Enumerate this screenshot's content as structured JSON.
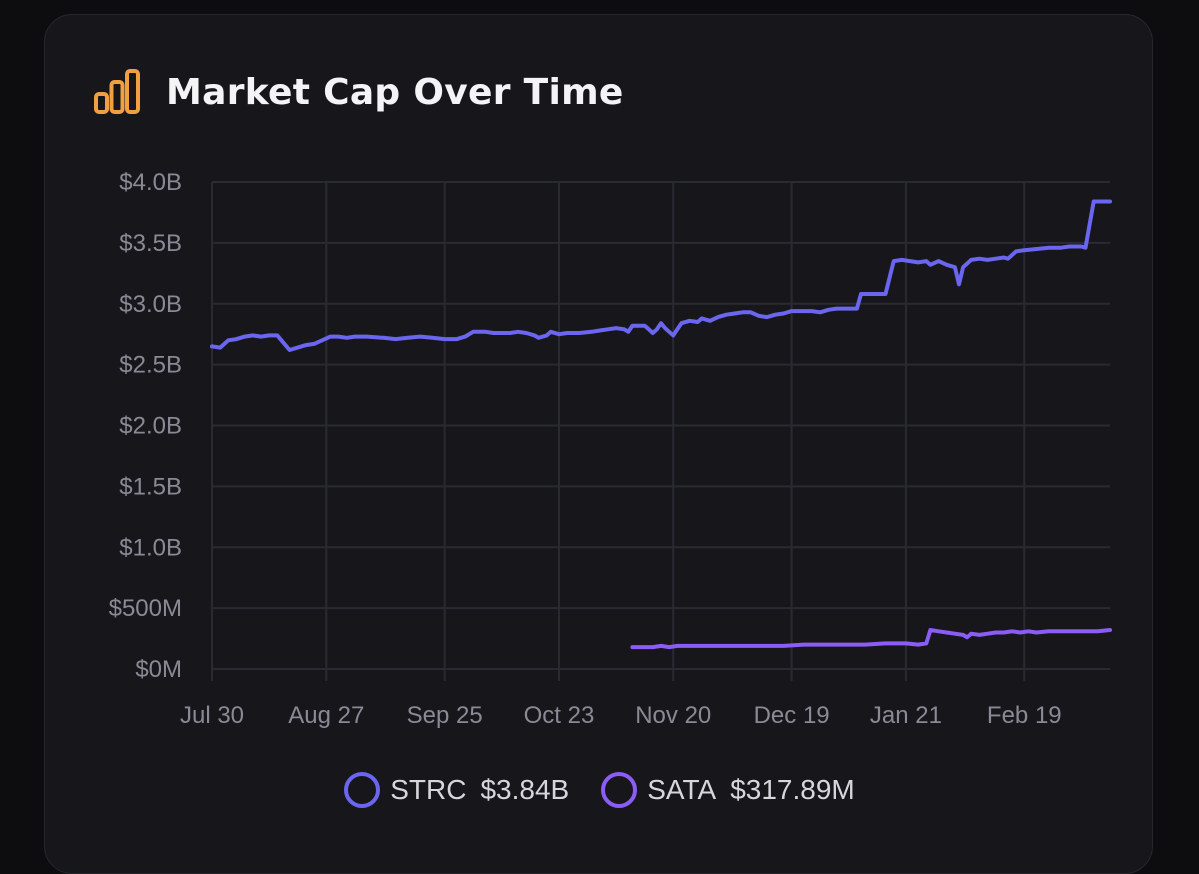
{
  "colors": {
    "accent_icon": "#f0a040",
    "strc": "#6b66f0",
    "sata": "#8b5cf6",
    "grid": "#2a2a33"
  },
  "header": {
    "icon": "bar-chart-icon",
    "title": "Market Cap Over Time"
  },
  "chart_data": {
    "type": "line",
    "title": "Market Cap Over Time",
    "xlabel": "",
    "ylabel": "",
    "ylim": [
      0,
      4000000000
    ],
    "yticks": [
      {
        "value": 0,
        "label": "$0M"
      },
      {
        "value": 500000000,
        "label": "$500M"
      },
      {
        "value": 1000000000,
        "label": "$1.0B"
      },
      {
        "value": 1500000000,
        "label": "$1.5B"
      },
      {
        "value": 2000000000,
        "label": "$2.0B"
      },
      {
        "value": 2500000000,
        "label": "$2.5B"
      },
      {
        "value": 3000000000,
        "label": "$3.0B"
      },
      {
        "value": 3500000000,
        "label": "$3.5B"
      },
      {
        "value": 4000000000,
        "label": "$4.0B"
      }
    ],
    "xlim": [
      0,
      220
    ],
    "xticks": [
      {
        "value": 0,
        "label": "Jul 30"
      },
      {
        "value": 28,
        "label": "Aug 27"
      },
      {
        "value": 57,
        "label": "Sep 25"
      },
      {
        "value": 85,
        "label": "Oct 23"
      },
      {
        "value": 113,
        "label": "Nov 20"
      },
      {
        "value": 142,
        "label": "Dec 19"
      },
      {
        "value": 170,
        "label": "Jan 21"
      },
      {
        "value": 199,
        "label": "Feb 19"
      }
    ],
    "grid": true,
    "x_unit": "days since Jul 30",
    "series": [
      {
        "name": "STRC",
        "value_label": "$3.84B",
        "color": "#6b66f0",
        "points": [
          [
            0,
            2.65
          ],
          [
            2,
            2.64
          ],
          [
            4,
            2.7
          ],
          [
            6,
            2.71
          ],
          [
            8,
            2.73
          ],
          [
            10,
            2.74
          ],
          [
            12,
            2.73
          ],
          [
            14,
            2.74
          ],
          [
            16,
            2.74
          ],
          [
            17,
            2.7
          ],
          [
            19,
            2.62
          ],
          [
            21,
            2.64
          ],
          [
            23,
            2.66
          ],
          [
            25,
            2.67
          ],
          [
            27,
            2.7
          ],
          [
            29,
            2.73
          ],
          [
            31,
            2.73
          ],
          [
            33,
            2.72
          ],
          [
            35,
            2.73
          ],
          [
            38,
            2.73
          ],
          [
            42,
            2.72
          ],
          [
            45,
            2.71
          ],
          [
            48,
            2.72
          ],
          [
            51,
            2.73
          ],
          [
            54,
            2.72
          ],
          [
            57,
            2.71
          ],
          [
            60,
            2.71
          ],
          [
            62,
            2.73
          ],
          [
            64,
            2.77
          ],
          [
            67,
            2.77
          ],
          [
            69,
            2.76
          ],
          [
            71,
            2.76
          ],
          [
            73,
            2.76
          ],
          [
            75,
            2.77
          ],
          [
            77,
            2.76
          ],
          [
            79,
            2.74
          ],
          [
            80,
            2.72
          ],
          [
            82,
            2.74
          ],
          [
            83,
            2.77
          ],
          [
            85,
            2.75
          ],
          [
            87,
            2.76
          ],
          [
            90,
            2.76
          ],
          [
            93,
            2.77
          ],
          [
            95,
            2.78
          ],
          [
            97,
            2.79
          ],
          [
            99,
            2.8
          ],
          [
            101,
            2.79
          ],
          [
            102,
            2.77
          ],
          [
            103,
            2.82
          ],
          [
            106,
            2.82
          ],
          [
            107,
            2.79
          ],
          [
            108,
            2.76
          ],
          [
            109,
            2.79
          ],
          [
            110,
            2.84
          ],
          [
            111,
            2.8
          ],
          [
            112,
            2.77
          ],
          [
            113,
            2.74
          ],
          [
            115,
            2.84
          ],
          [
            117,
            2.86
          ],
          [
            119,
            2.85
          ],
          [
            120,
            2.88
          ],
          [
            122,
            2.86
          ],
          [
            124,
            2.89
          ],
          [
            126,
            2.91
          ],
          [
            128,
            2.92
          ],
          [
            130,
            2.93
          ],
          [
            132,
            2.93
          ],
          [
            134,
            2.9
          ],
          [
            136,
            2.89
          ],
          [
            138,
            2.91
          ],
          [
            140,
            2.92
          ],
          [
            142,
            2.94
          ],
          [
            145,
            2.94
          ],
          [
            147,
            2.94
          ],
          [
            149,
            2.93
          ],
          [
            151,
            2.95
          ],
          [
            153,
            2.96
          ],
          [
            155,
            2.96
          ],
          [
            158,
            2.96
          ],
          [
            159,
            3.08
          ],
          [
            161,
            3.08
          ],
          [
            163,
            3.08
          ],
          [
            165,
            3.08
          ],
          [
            167,
            3.35
          ],
          [
            169,
            3.36
          ],
          [
            171,
            3.35
          ],
          [
            173,
            3.34
          ],
          [
            175,
            3.35
          ],
          [
            176,
            3.32
          ],
          [
            178,
            3.35
          ],
          [
            180,
            3.32
          ],
          [
            182,
            3.3
          ],
          [
            183,
            3.16
          ],
          [
            184,
            3.3
          ],
          [
            186,
            3.36
          ],
          [
            188,
            3.37
          ],
          [
            190,
            3.36
          ],
          [
            192,
            3.37
          ],
          [
            194,
            3.38
          ],
          [
            195,
            3.37
          ],
          [
            197,
            3.43
          ],
          [
            199,
            3.44
          ],
          [
            202,
            3.45
          ],
          [
            205,
            3.46
          ],
          [
            208,
            3.46
          ],
          [
            210,
            3.47
          ],
          [
            213,
            3.47
          ],
          [
            214,
            3.46
          ],
          [
            216,
            3.84
          ],
          [
            220,
            3.84
          ]
        ]
      },
      {
        "name": "SATA",
        "value_label": "$317.89M",
        "color": "#8b5cf6",
        "points": [
          [
            103,
            0.18
          ],
          [
            106,
            0.18
          ],
          [
            108,
            0.18
          ],
          [
            110,
            0.19
          ],
          [
            112,
            0.18
          ],
          [
            114,
            0.19
          ],
          [
            118,
            0.19
          ],
          [
            122,
            0.19
          ],
          [
            126,
            0.19
          ],
          [
            130,
            0.19
          ],
          [
            135,
            0.19
          ],
          [
            140,
            0.19
          ],
          [
            145,
            0.2
          ],
          [
            150,
            0.2
          ],
          [
            155,
            0.2
          ],
          [
            160,
            0.2
          ],
          [
            165,
            0.21
          ],
          [
            170,
            0.21
          ],
          [
            173,
            0.2
          ],
          [
            175,
            0.21
          ],
          [
            176,
            0.32
          ],
          [
            178,
            0.31
          ],
          [
            180,
            0.3
          ],
          [
            182,
            0.29
          ],
          [
            184,
            0.28
          ],
          [
            185,
            0.26
          ],
          [
            186,
            0.29
          ],
          [
            188,
            0.28
          ],
          [
            190,
            0.29
          ],
          [
            192,
            0.3
          ],
          [
            194,
            0.3
          ],
          [
            196,
            0.31
          ],
          [
            198,
            0.3
          ],
          [
            200,
            0.31
          ],
          [
            202,
            0.3
          ],
          [
            205,
            0.31
          ],
          [
            208,
            0.31
          ],
          [
            210,
            0.31
          ],
          [
            214,
            0.31
          ],
          [
            217,
            0.31
          ],
          [
            220,
            0.32
          ]
        ]
      }
    ]
  },
  "legend": [
    {
      "name": "STRC",
      "value": "$3.84B"
    },
    {
      "name": "SATA",
      "value": "$317.89M"
    }
  ]
}
